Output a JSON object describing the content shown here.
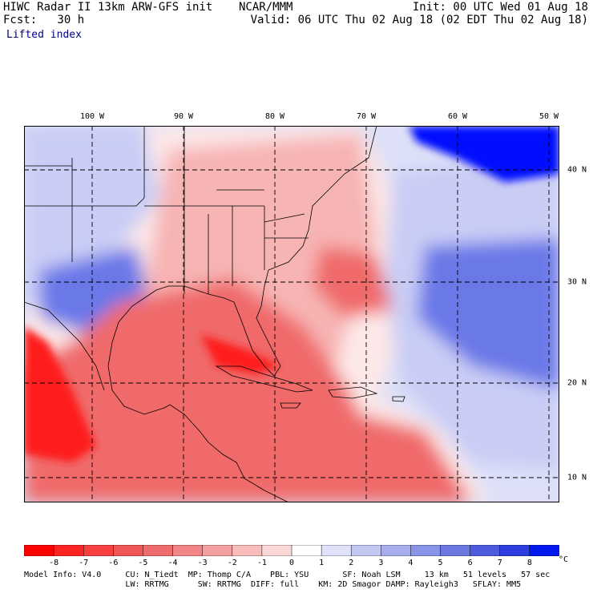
{
  "header": {
    "title": "HIWC Radar II 13km ARW-GFS init",
    "org": "NCAR/MMM",
    "init": "Init: 00 UTC Wed 01 Aug 18",
    "fcst": "Fcst:   30 h",
    "valid": "Valid: 06 UTC Thu 02 Aug 18 (02 EDT Thu 02 Aug 18)",
    "field": "Lifted index"
  },
  "map": {
    "lon_labels": [
      "100 W",
      "90 W",
      "80 W",
      "70 W",
      "60 W",
      "50 W"
    ],
    "lat_labels": [
      "40 N",
      "30 N",
      "20 N",
      "10 N"
    ],
    "colors": {
      "strong_unstable": "#ff1a1a",
      "unstable": "#f06a6a",
      "slightly_unstable": "#f7b4b4",
      "neutral": "#fde8e8",
      "stable": "#c9cdf5",
      "very_stable": "#6a78e8",
      "extreme_stable": "#0010ff"
    }
  },
  "colorbar": {
    "ticks": [
      "-8",
      "-7",
      "-6",
      "-5",
      "-4",
      "-3",
      "-2",
      "-1",
      "0",
      "1",
      "2",
      "3",
      "4",
      "5",
      "6",
      "7",
      "8"
    ],
    "unit": "°C",
    "colors": [
      "#ff0000",
      "#ff2424",
      "#f84040",
      "#f05656",
      "#f06c6c",
      "#f28686",
      "#f5a0a0",
      "#f8bcbc",
      "#fbd8d8",
      "#ffffff",
      "#dfe2f8",
      "#c3c8f2",
      "#a6aeec",
      "#8894e6",
      "#6a78e0",
      "#4c5cdc",
      "#2c3ee0",
      "#0018ee"
    ]
  },
  "info": {
    "line1": "Model Info: V4.0     CU: N_Tiedt  MP: Thomp C/A    PBL: YSU       SF: Noah LSM     13 km   51 levels   57 sec",
    "line2": "                     LW: RRTMG      SW: RRTMG  DIFF: full    KM: 2D Smagor DAMP: Rayleigh3   SFLAY: MM5"
  }
}
